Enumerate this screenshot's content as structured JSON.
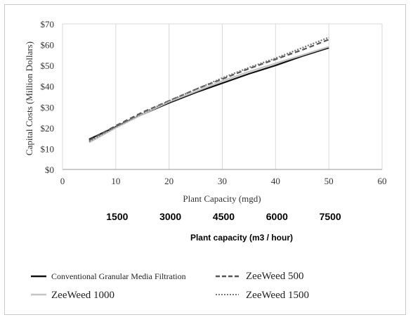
{
  "chart_data": {
    "type": "line",
    "xlabel": "Plant Capacity (mgd)",
    "ylabel": "Capital Costs (Million Dollars)",
    "xlim": [
      0,
      60
    ],
    "ylim": [
      0,
      70
    ],
    "x_ticks": [
      "0",
      "10",
      "20",
      "30",
      "40",
      "50",
      "60"
    ],
    "y_ticks": [
      "$0",
      "$10",
      "$20",
      "$30",
      "$40",
      "$50",
      "$60",
      "$70"
    ],
    "grid": "vertical",
    "legend": "bottom",
    "series": [
      {
        "name": "Conventional Granular Media Filtration",
        "color": "#111111",
        "style": "solid",
        "x": [
          5,
          10,
          15,
          20,
          25,
          30,
          35,
          40,
          45,
          50
        ],
        "y": [
          14.5,
          20.5,
          26.5,
          32,
          37,
          41.5,
          46,
          50,
          54.5,
          58.5
        ]
      },
      {
        "name": "ZeeWeed 500",
        "color": "#555555",
        "style": "dashed",
        "x": [
          5,
          10,
          15,
          20,
          25,
          30,
          35,
          40,
          45,
          50
        ],
        "y": [
          14,
          21,
          27.5,
          33,
          38.5,
          43.5,
          48.5,
          53,
          57.5,
          62.5
        ]
      },
      {
        "name": "ZeeWeed 1000",
        "color": "#c4c4c4",
        "style": "solid",
        "x": [
          5,
          10,
          15,
          20,
          25,
          30,
          35,
          40,
          45,
          50
        ],
        "y": [
          13,
          20,
          26.5,
          32.5,
          37.5,
          42.5,
          47,
          51,
          55,
          59
        ]
      },
      {
        "name": "ZeeWeed 1500",
        "color": "#777777",
        "style": "dotted",
        "x": [
          5,
          10,
          15,
          20,
          25,
          30,
          35,
          40,
          45,
          50
        ],
        "y": [
          13.5,
          20.5,
          27,
          33,
          38.5,
          44,
          49,
          53.5,
          58.5,
          63.5
        ]
      }
    ],
    "secondary_axis": {
      "title": "Plant capacity (m3 / hour)",
      "labels": [
        "1500",
        "3000",
        "4500",
        "6000",
        "7500"
      ],
      "positions": [
        10,
        20,
        30,
        40,
        50
      ]
    }
  }
}
